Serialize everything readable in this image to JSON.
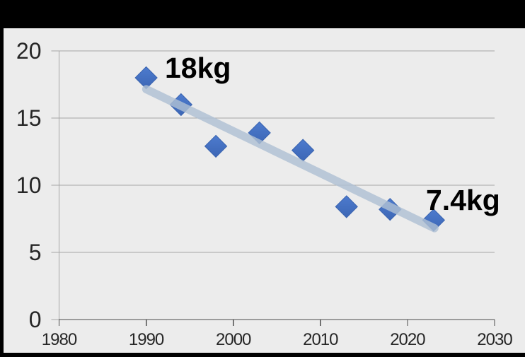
{
  "colors": {
    "page_bg": "#000000",
    "plot_bg": "#ececec",
    "gridline": "#a6a6a6",
    "y_axis": "#a6a6a6",
    "x_axis": "#4d4d4d",
    "tick_label": "#262626",
    "marker_fill_top": "#4d7bce",
    "marker_fill_bottom": "#3c66b5",
    "marker_edge": "#3a64b0",
    "trendline": "#aebfd3",
    "annotation_color": "#000000"
  },
  "chart_data": {
    "type": "scatter",
    "title": "",
    "xlabel": "",
    "ylabel": "",
    "xlim": [
      1980,
      2030
    ],
    "ylim": [
      0,
      20
    ],
    "x_ticks": [
      1980,
      1990,
      2000,
      2010,
      2020,
      2030
    ],
    "y_ticks": [
      0,
      5,
      10,
      15,
      20
    ],
    "grid": "horizontal-only",
    "legend": "none",
    "marker_shape": "diamond",
    "series": [
      {
        "name": "",
        "points": [
          {
            "x": 1990,
            "y": 18.0
          },
          {
            "x": 1994,
            "y": 16.0
          },
          {
            "x": 1998,
            "y": 12.9
          },
          {
            "x": 2003,
            "y": 13.9
          },
          {
            "x": 2008,
            "y": 12.6
          },
          {
            "x": 2013,
            "y": 8.4
          },
          {
            "x": 2018,
            "y": 8.2
          },
          {
            "x": 2023,
            "y": 7.4
          }
        ]
      }
    ],
    "trendline": {
      "x1": 1990,
      "y1": 17.15,
      "x2": 2023.1,
      "y2": 6.8
    },
    "annotations": [
      {
        "text": "18kg"
      },
      {
        "text": "7.4kg"
      }
    ]
  }
}
